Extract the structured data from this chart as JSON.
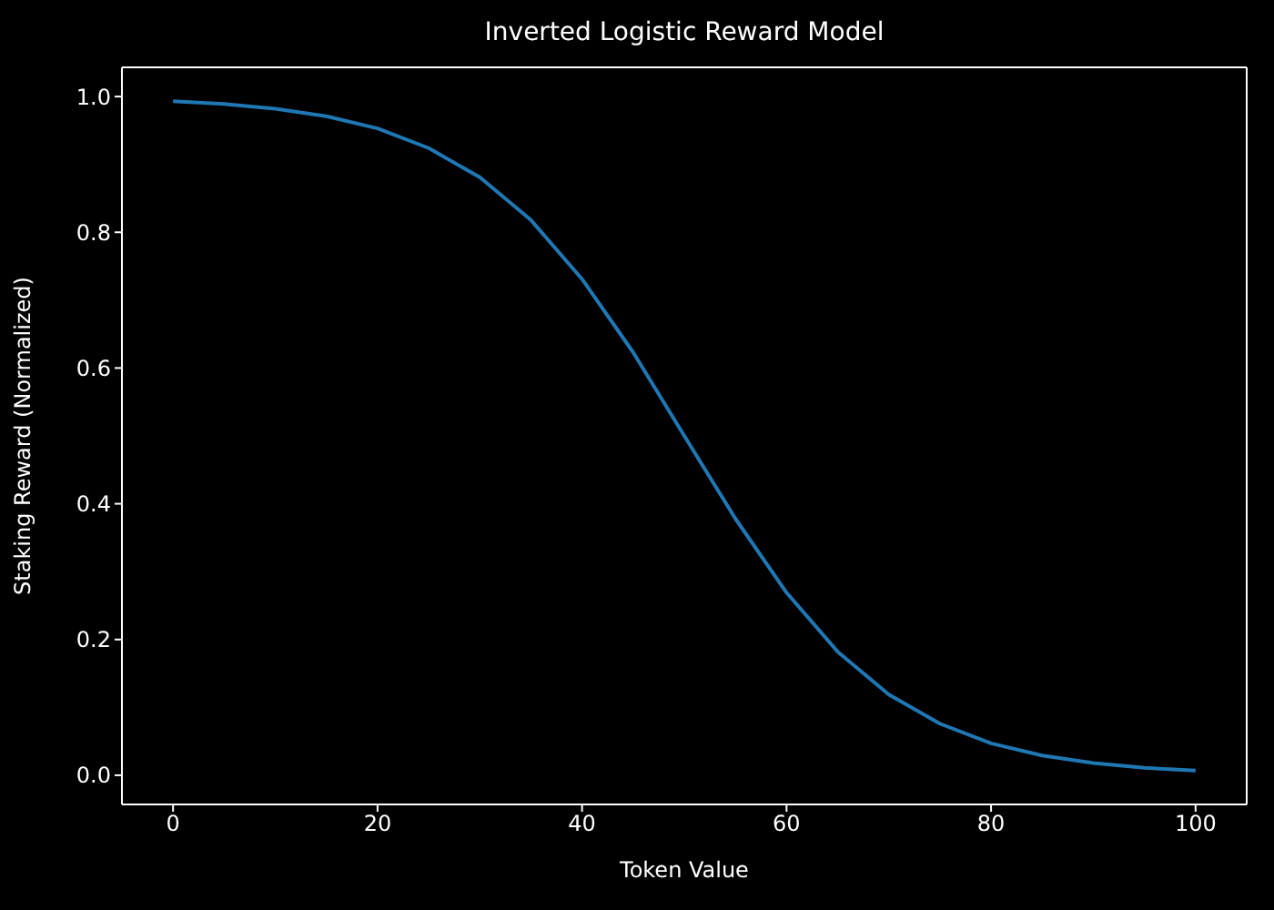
{
  "chart_data": {
    "type": "line",
    "title": "Inverted Logistic Reward Model",
    "xlabel": "Token Value",
    "ylabel": "Staking Reward (Normalized)",
    "x": [
      0,
      5,
      10,
      15,
      20,
      25,
      30,
      35,
      40,
      45,
      50,
      55,
      60,
      65,
      70,
      75,
      80,
      85,
      90,
      95,
      100
    ],
    "series": [
      {
        "color": "#1f77b4",
        "values": [
          0.993,
          0.989,
          0.982,
          0.971,
          0.953,
          0.924,
          0.881,
          0.818,
          0.731,
          0.623,
          0.5,
          0.378,
          0.269,
          0.182,
          0.119,
          0.076,
          0.047,
          0.029,
          0.018,
          0.011,
          0.007
        ]
      }
    ],
    "xlim": [
      -5,
      105
    ],
    "ylim": [
      -0.043,
      1.043
    ],
    "xticks": [
      0,
      20,
      40,
      60,
      80,
      100
    ],
    "yticks": [
      {
        "value": 0,
        "label": "0.0"
      },
      {
        "value": 0.2,
        "label": "0.2"
      },
      {
        "value": 0.4,
        "label": "0.4"
      },
      {
        "value": 0.6,
        "label": "0.6"
      },
      {
        "value": 0.8,
        "label": "0.8"
      },
      {
        "value": 1,
        "label": "1.0"
      }
    ],
    "grid": false,
    "legend": false,
    "marker": "none",
    "line_style": "solid"
  }
}
